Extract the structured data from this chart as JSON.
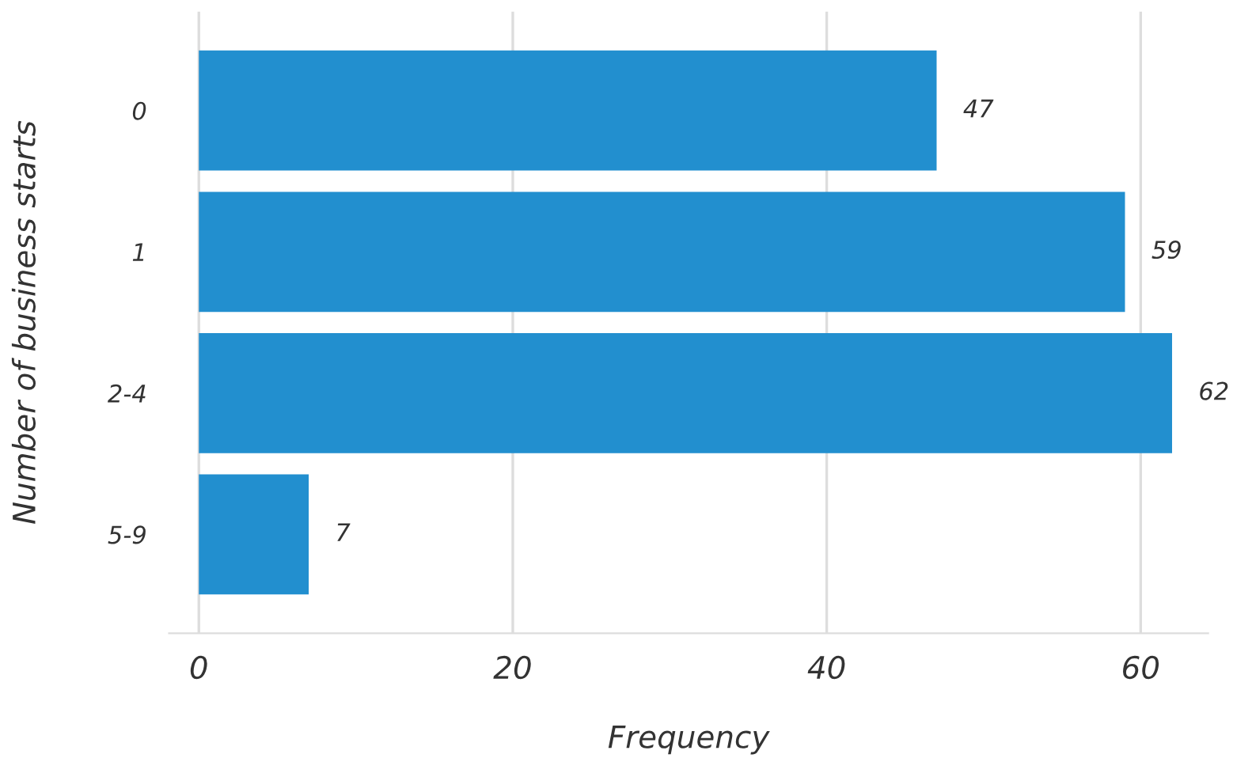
{
  "chart_data": {
    "type": "bar",
    "orientation": "horizontal",
    "xlabel": "Frequency",
    "ylabel": "Number of business starts",
    "categories": [
      "0",
      "1",
      "2-4",
      "5-9"
    ],
    "values": [
      47,
      59,
      62,
      7
    ],
    "color": "#228fcf",
    "xlim": [
      -1.9,
      64.3
    ],
    "xticks": [
      0,
      20,
      40,
      60
    ],
    "grid": "x",
    "data_labels": true
  }
}
